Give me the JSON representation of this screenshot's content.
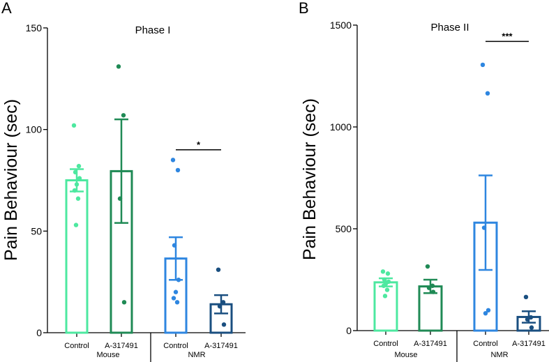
{
  "colors": {
    "mouse_control": "#4de8a0",
    "mouse_a317491": "#1f8a55",
    "nmr_control": "#2e86e0",
    "nmr_a317491": "#1a4f80",
    "axis": "#000000"
  },
  "chart_data": [
    {
      "type": "bar",
      "panel_label": "A",
      "title": "Phase I",
      "ylabel": "Pain Behaviour (sec)",
      "ylim": [
        0,
        150
      ],
      "yticks": [
        "0",
        "50",
        "100",
        "150"
      ],
      "categories": [
        "Control",
        "A-317491",
        "Control",
        "A-317491"
      ],
      "groups": [
        {
          "label": "Mouse",
          "categories": [
            0,
            1
          ]
        },
        {
          "label": "NMR",
          "categories": [
            2,
            3
          ]
        }
      ],
      "series": [
        {
          "name": "Mouse Control",
          "color_key": "mouse_control",
          "mean": 75,
          "sem": 5.5,
          "points": [
            102,
            82,
            79,
            76,
            73,
            70,
            66,
            53
          ]
        },
        {
          "name": "Mouse A-317491",
          "color_key": "mouse_a317491",
          "mean": 79.5,
          "sem": 25.5,
          "points": [
            131,
            107,
            66,
            15
          ]
        },
        {
          "name": "NMR Control",
          "color_key": "nmr_control",
          "mean": 36.5,
          "sem": 10.5,
          "points": [
            85,
            80,
            43,
            26,
            20,
            17,
            15
          ]
        },
        {
          "name": "NMR A-317491",
          "color_key": "nmr_a317491",
          "mean": 14,
          "sem": 4.5,
          "points": [
            31,
            15,
            13,
            4
          ]
        }
      ],
      "significance": [
        {
          "from": 2,
          "to": 3,
          "label": "*",
          "y": 90
        }
      ]
    },
    {
      "type": "bar",
      "panel_label": "B",
      "title": "Phase II",
      "ylabel": "Pain Behaviour (sec)",
      "ylim": [
        0,
        1500
      ],
      "yticks": [
        "0",
        "500",
        "1000",
        "1500"
      ],
      "categories": [
        "Control",
        "A-317491",
        "Control",
        "A-317491"
      ],
      "groups": [
        {
          "label": "Mouse",
          "categories": [
            0,
            1
          ]
        },
        {
          "label": "NMR",
          "categories": [
            2,
            3
          ]
        }
      ],
      "series": [
        {
          "name": "Mouse Control",
          "color_key": "mouse_control",
          "mean": 237,
          "sem": 20,
          "points": [
            290,
            280,
            250,
            240,
            230,
            220,
            200,
            170
          ]
        },
        {
          "name": "Mouse A-317491",
          "color_key": "mouse_a317491",
          "mean": 217,
          "sem": 33,
          "points": [
            315,
            220,
            210,
            190
          ]
        },
        {
          "name": "NMR Control",
          "color_key": "nmr_control",
          "mean": 530,
          "sem": 232,
          "points": [
            1305,
            1165,
            505,
            100,
            85
          ]
        },
        {
          "name": "NMR A-317491",
          "color_key": "nmr_a317491",
          "mean": 67,
          "sem": 28,
          "points": [
            165,
            65,
            55,
            15
          ]
        }
      ],
      "significance": [
        {
          "from": 2,
          "to": 3,
          "label": "***",
          "y": 1420
        }
      ]
    }
  ]
}
